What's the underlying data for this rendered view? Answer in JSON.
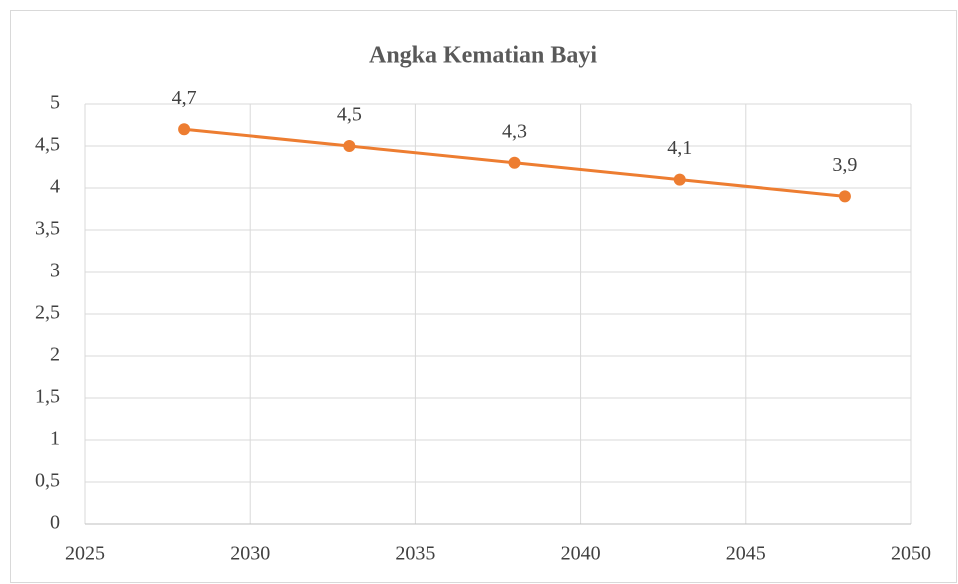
{
  "chart_data": {
    "type": "line",
    "title": "Angka Kematian Bayi",
    "x": [
      2028,
      2033,
      2038,
      2043,
      2048
    ],
    "values": [
      4.7,
      4.5,
      4.3,
      4.1,
      3.9
    ],
    "value_labels": [
      "4,7",
      "4,5",
      "4,3",
      "4,1",
      "3,9"
    ],
    "color": "#ed7d31",
    "xlim": [
      2025,
      2050
    ],
    "xticks": [
      2025,
      2030,
      2035,
      2040,
      2045,
      2050
    ],
    "ylim": [
      0,
      5
    ],
    "yticks": [
      0,
      {
        "value": 0.5,
        "label": "0,5"
      },
      1,
      {
        "value": 1.5,
        "label": "1,5"
      },
      2,
      {
        "value": 2.5,
        "label": "2,5"
      },
      3,
      {
        "value": 3.5,
        "label": "3,5"
      },
      4,
      {
        "value": 4.5,
        "label": "4,5"
      },
      5
    ],
    "grid": true
  }
}
